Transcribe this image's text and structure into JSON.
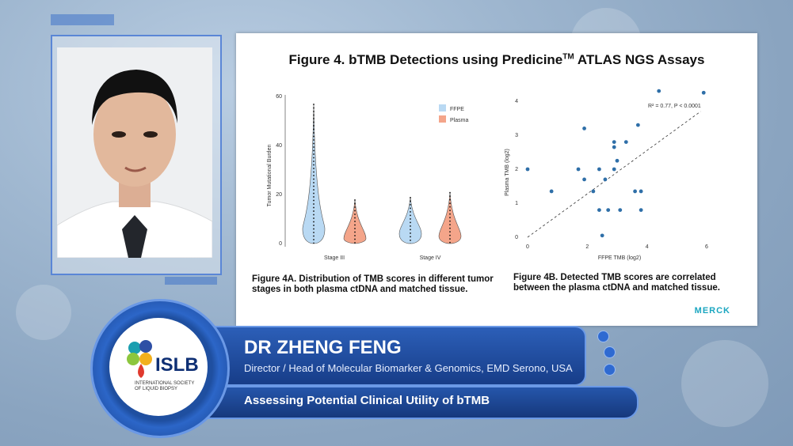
{
  "slide": {
    "title": "Figure 4. bTMB Detections using Predicine",
    "title_tm": "TM",
    "title_end": " ATLAS NGS Assays",
    "caption_a": "Figure 4A. Distribution of TMB scores in different tumor stages in both plasma ctDNA and matched tissue.",
    "caption_b": "Figure 4B. Detected TMB scores are correlated between the plasma ctDNA and matched tissue.",
    "logo": "MERCK"
  },
  "chart_data": [
    {
      "type": "violin",
      "ylabel": "Tumor Mutational Burden",
      "categories": [
        "Stage III",
        "Stage IV"
      ],
      "ylim": [
        0,
        60
      ],
      "yticks": [
        "0",
        "20",
        "40",
        "60"
      ],
      "series": [
        {
          "name": "FFPE",
          "color": "#b9d9f3",
          "max": [
            57,
            19
          ],
          "median": [
            6,
            4
          ]
        },
        {
          "name": "Plasma",
          "color": "#f4a58a",
          "max": [
            18,
            21
          ],
          "median": [
            2,
            3
          ]
        }
      ],
      "legend": "top-right"
    },
    {
      "type": "scatter",
      "xlabel": "FFPE TMB (log2)",
      "ylabel": "Plasma TMB (log2)",
      "xlim": [
        0,
        6
      ],
      "ylim": [
        0,
        4
      ],
      "xticks": [
        "0",
        "2",
        "4",
        "6"
      ],
      "yticks": [
        "0",
        "1",
        "2",
        "3",
        "4"
      ],
      "annotation": "R² = 0.77, P < 0.0001",
      "points": [
        [
          0,
          2
        ],
        [
          0.8,
          1.35
        ],
        [
          1.7,
          2
        ],
        [
          1.9,
          1.7
        ],
        [
          1.9,
          3.2
        ],
        [
          2.2,
          1.35
        ],
        [
          2.4,
          2
        ],
        [
          2.4,
          0.8
        ],
        [
          2.5,
          0.05
        ],
        [
          2.6,
          1.7
        ],
        [
          2.7,
          0.8
        ],
        [
          2.9,
          2.8
        ],
        [
          2.9,
          2.65
        ],
        [
          2.9,
          2
        ],
        [
          3.0,
          2.25
        ],
        [
          3.1,
          0.8
        ],
        [
          3.3,
          2.8
        ],
        [
          3.6,
          1.35
        ],
        [
          3.7,
          3.3
        ],
        [
          3.8,
          1.35
        ],
        [
          3.8,
          0.8
        ],
        [
          4.4,
          4.3
        ],
        [
          5.9,
          4.25
        ]
      ]
    }
  ],
  "speaker": {
    "name": "DR ZHENG FENG",
    "role": "Director / Head of  Molecular Biomarker & Genomics, EMD Serono, USA",
    "topic": "Assessing Potential Clinical Utility of bTMB"
  },
  "org": {
    "abbr": "ISLB",
    "full_1": "INTERNATIONAL SOCIETY",
    "full_2": "OF LIQUID BIOPSY"
  }
}
